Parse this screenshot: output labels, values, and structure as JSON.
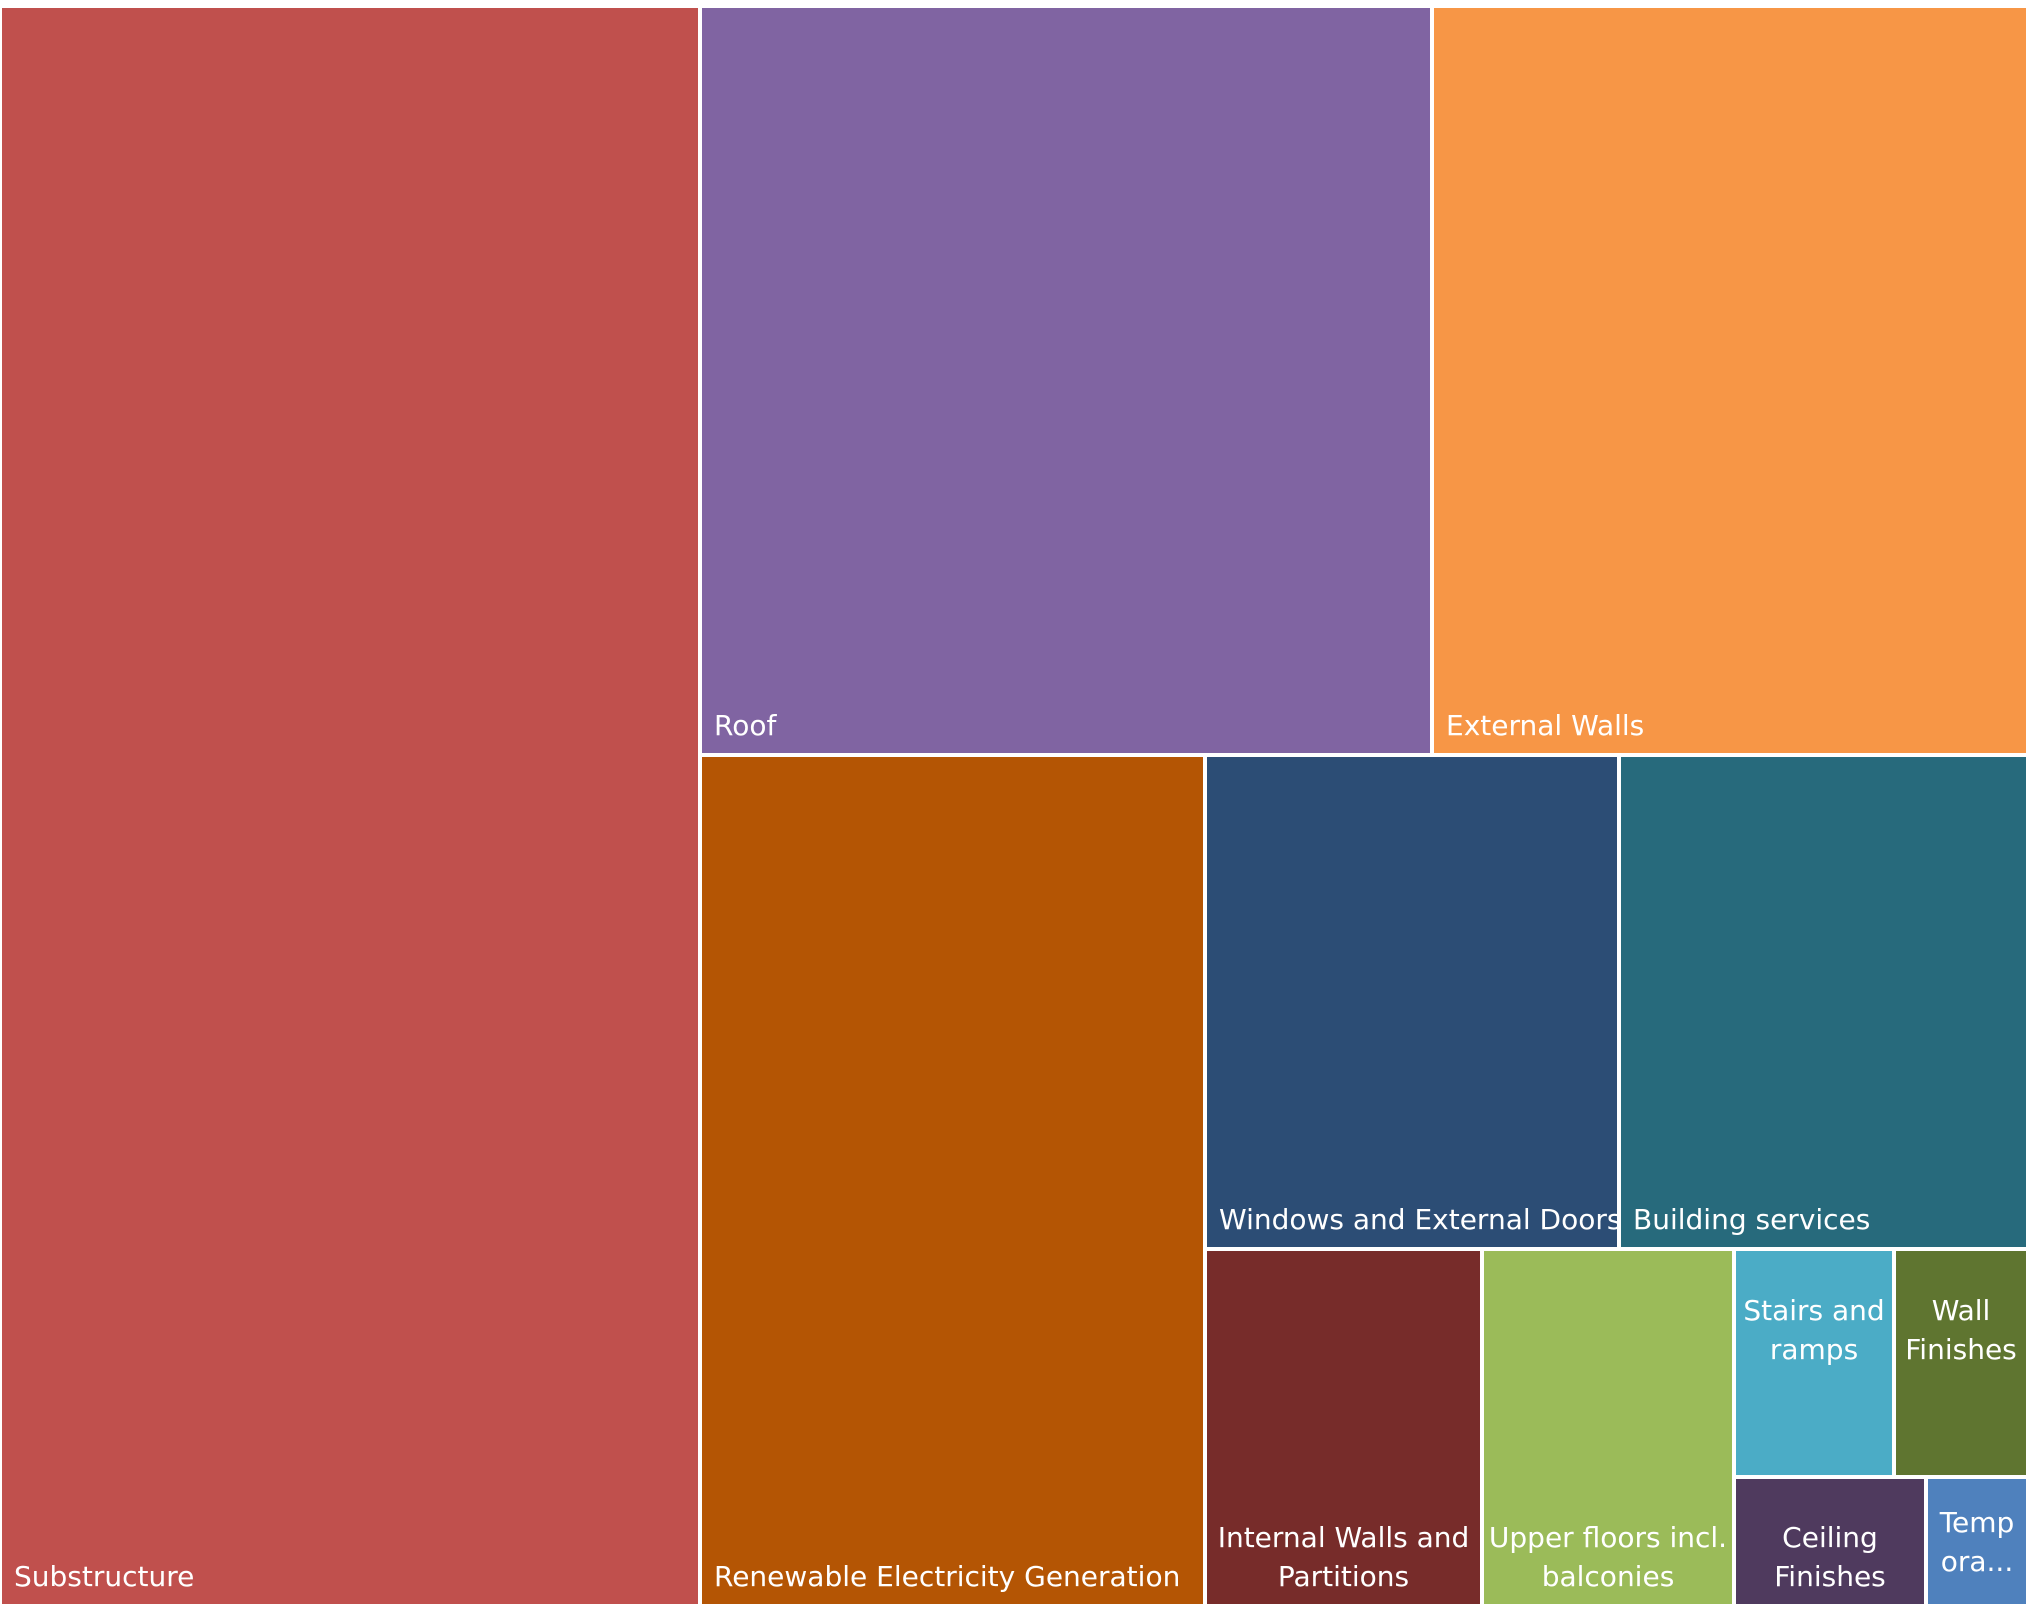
{
  "chart_data": {
    "type": "treemap",
    "title": "",
    "items": [
      {
        "label": "Substructure",
        "lines": [
          "Substructure"
        ],
        "value": 36.9,
        "color": "#C0504D"
      },
      {
        "label": "Roof",
        "lines": [
          "Roof"
        ],
        "value": 16.6,
        "color": "#8064A2"
      },
      {
        "label": "External Walls",
        "lines": [
          "External Walls"
        ],
        "value": 14.1,
        "color": "#F79646"
      },
      {
        "label": "Renewable Electricity Generation",
        "lines": [
          "Renewable Electricity Generation"
        ],
        "value": 10.9,
        "color": "#B45504"
      },
      {
        "label": "Windows and External Doors",
        "lines": [
          "Windows and External Doors"
        ],
        "value": 5.6,
        "color": "#2C4D75"
      },
      {
        "label": "Building services",
        "lines": [
          "Building services"
        ],
        "value": 5.6,
        "color": "#276A7C"
      },
      {
        "label": "Internal Walls and Partitions",
        "lines": [
          "Internal Walls and",
          "Partitions"
        ],
        "value": 3.4,
        "color": "#772C2A"
      },
      {
        "label": "Upper floors incl. balconies",
        "lines": [
          "Upper floors incl.",
          "balconies"
        ],
        "value": 3.0,
        "color": "#9BBB59"
      },
      {
        "label": "Stairs and ramps",
        "lines": [
          "Stairs and",
          "ramps"
        ],
        "value": 1.2,
        "color": "#4BACC6"
      },
      {
        "label": "Wall Finishes",
        "lines": [
          "Wall",
          "Finishes"
        ],
        "value": 1.0,
        "color": "#5F7530"
      },
      {
        "label": "Ceiling Finishes",
        "lines": [
          "Ceiling",
          "Finishes"
        ],
        "value": 1.0,
        "color": "#4F3A5E"
      },
      {
        "label": "Temp ora...",
        "lines": [
          "Temp",
          "ora..."
        ],
        "value": 0.5,
        "color": "#4F81BD"
      }
    ]
  }
}
